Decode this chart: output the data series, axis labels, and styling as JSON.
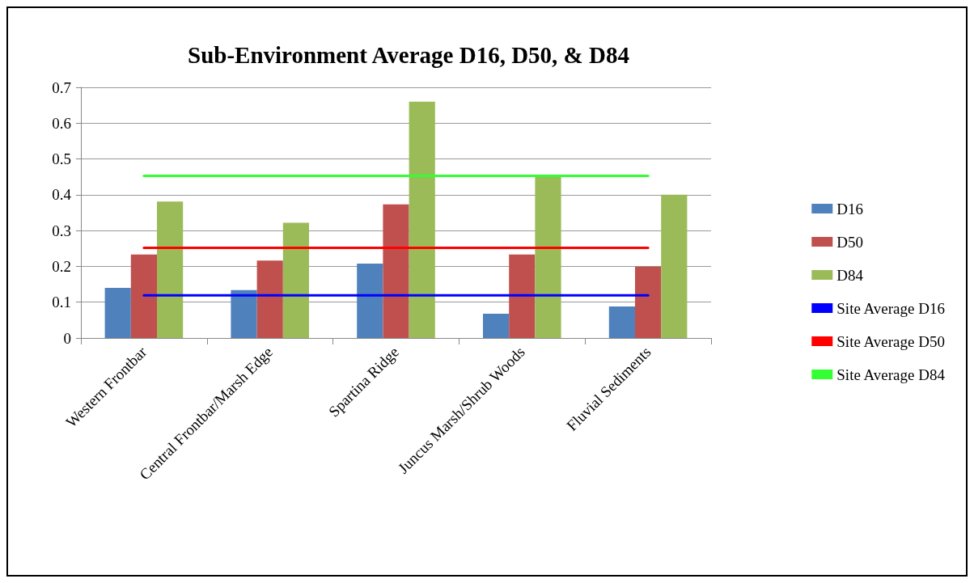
{
  "chart_data": {
    "type": "bar",
    "title": "Sub-Environment Average D16, D50, & D84",
    "categories": [
      "Western Frontbar",
      "Central Frontbar/Marsh Edge",
      "Spartina Ridge",
      "Juncus Marsh/Shrub Woods",
      "Fluvial Sediments"
    ],
    "series": [
      {
        "name": "D16",
        "color": "#4f81bd",
        "values": [
          0.14,
          0.134,
          0.208,
          0.068,
          0.088
        ]
      },
      {
        "name": "D50",
        "color": "#c0504d",
        "values": [
          0.233,
          0.216,
          0.373,
          0.233,
          0.199
        ]
      },
      {
        "name": "D84",
        "color": "#9bbb59",
        "values": [
          0.381,
          0.322,
          0.66,
          0.45,
          0.4
        ]
      },
      {
        "name": "Site Average D16",
        "type": "line",
        "color": "#0000ff",
        "values": [
          0.119,
          0.119,
          0.119,
          0.119,
          0.119
        ]
      },
      {
        "name": "Site Average D50",
        "type": "line",
        "color": "#ff0000",
        "values": [
          0.252,
          0.252,
          0.252,
          0.252,
          0.252
        ]
      },
      {
        "name": "Site Average D84",
        "type": "line",
        "color": "#33ff33",
        "values": [
          0.453,
          0.453,
          0.453,
          0.453,
          0.453
        ]
      }
    ],
    "ylim": [
      0,
      0.7
    ],
    "yticks": [
      0,
      0.1,
      0.2,
      0.3,
      0.4,
      0.5,
      0.6,
      0.7
    ],
    "grid": "y",
    "legend": "right",
    "marker": "none",
    "line_style": "solid"
  }
}
